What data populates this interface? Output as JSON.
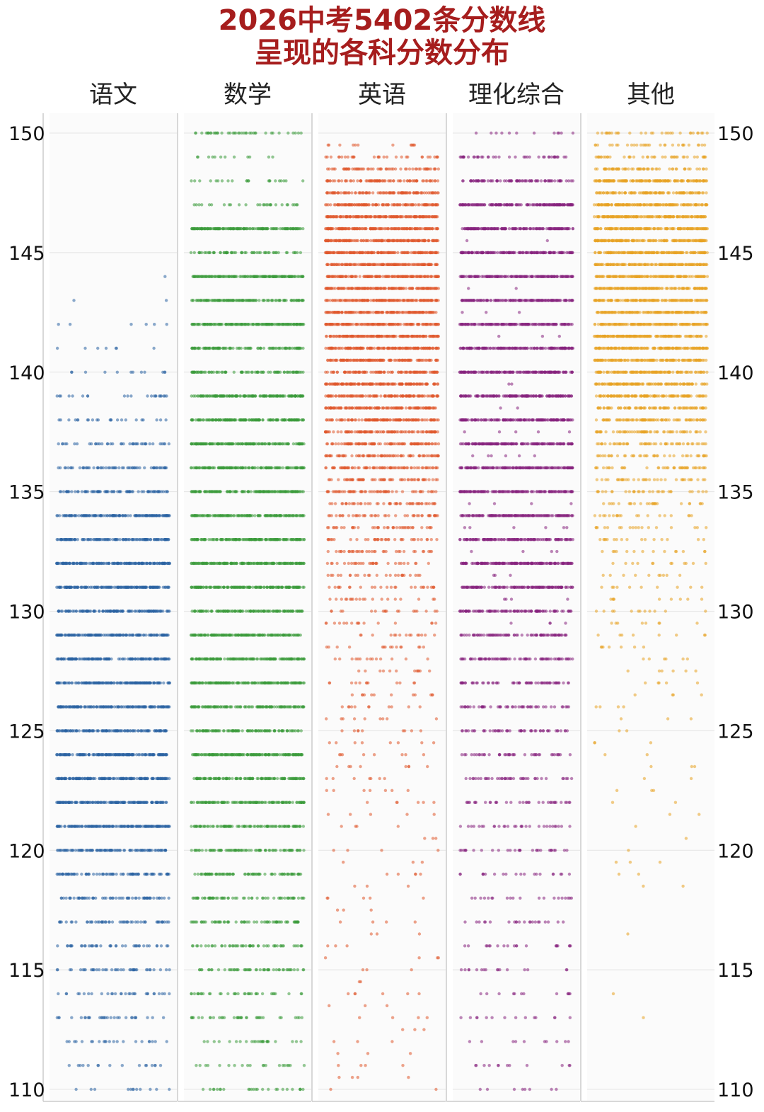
{
  "chart_data": {
    "type": "scatter",
    "title": [
      "2026中考5402条分数线",
      "呈现的各科分数分布"
    ],
    "ylim": [
      110,
      150
    ],
    "yticks": [
      110,
      115,
      120,
      125,
      130,
      135,
      140,
      145,
      150
    ],
    "y_axis_both_sides": true,
    "grid": "horizontal",
    "series": [
      {
        "name": "语文",
        "color": "#2a62a3",
        "points_per_score": {
          "144": 1,
          "143": 2,
          "142": 6,
          "141": 7,
          "140": 12,
          "139": 22,
          "138": 23,
          "137": 40,
          "136": 60,
          "135": 80,
          "134": 150,
          "133": 120,
          "132": 150,
          "131": 150,
          "130": 120,
          "129": 150,
          "128": 150,
          "127": 150,
          "126": 150,
          "125": 120,
          "124": 150,
          "123": 150,
          "122": 150,
          "121": 150,
          "120": 100,
          "119": 80,
          "118": 60,
          "117": 50,
          "116": 40,
          "115": 40,
          "114": 30,
          "113": 30,
          "112": 22,
          "111": 16,
          "110": 12
        }
      },
      {
        "name": "数学",
        "color": "#3a9a3a",
        "points_per_score": {
          "150": 40,
          "149": 12,
          "148": 22,
          "147": 28,
          "146": 150,
          "145": 60,
          "144": 150,
          "143": 120,
          "142": 150,
          "141": 100,
          "140": 80,
          "139": 150,
          "138": 150,
          "137": 150,
          "136": 150,
          "135": 150,
          "134": 150,
          "133": 150,
          "132": 150,
          "131": 150,
          "130": 120,
          "129": 150,
          "128": 150,
          "127": 150,
          "126": 120,
          "125": 100,
          "124": 150,
          "123": 120,
          "122": 120,
          "121": 100,
          "120": 80,
          "119": 80,
          "118": 60,
          "117": 60,
          "116": 50,
          "115": 50,
          "114": 35,
          "113": 35,
          "112": 25,
          "111": 20,
          "110": 25
        }
      },
      {
        "name": "英语",
        "color": "#e0582b",
        "points_per_score": {
          "150": 0,
          "149.5": 12,
          "149": 30,
          "148.5": 60,
          "148": 80,
          "147.5": 100,
          "147": 120,
          "146.5": 150,
          "146": 150,
          "145.5": 150,
          "145": 150,
          "144.5": 150,
          "144": 150,
          "143.5": 150,
          "143": 150,
          "142.5": 150,
          "142": 150,
          "141.5": 150,
          "141": 150,
          "140.5": 120,
          "140": 100,
          "139.5": 150,
          "139": 120,
          "138.5": 120,
          "138": 120,
          "137.5": 100,
          "137": 100,
          "136.5": 80,
          "136": 80,
          "135.5": 60,
          "135": 60,
          "134.5": 50,
          "134": 45,
          "133.5": 40,
          "133": 35,
          "132.5": 35,
          "132": 30,
          "131.5": 25,
          "131": 25,
          "130.5": 20,
          "130": 18,
          "129.5": 16,
          "129": 15,
          "128.5": 15,
          "128": 14,
          "127.5": 12,
          "127": 12,
          "126.5": 12,
          "126": 11,
          "125.5": 9,
          "125": 9,
          "124.5": 8,
          "124": 8,
          "123.5": 8,
          "123": 7,
          "122.5": 7,
          "122": 6,
          "121.5": 5,
          "121": 4,
          "120.5": 3,
          "120": 4,
          "119.5": 3,
          "119": 5,
          "118.5": 3,
          "118": 5,
          "117.5": 3,
          "117": 4,
          "116.5": 3,
          "116": 3,
          "115.5": 4,
          "115": 3,
          "114.5": 2,
          "114": 6,
          "113.5": 3,
          "113": 4,
          "112.5": 3,
          "112": 3,
          "111.5": 3,
          "111": 4,
          "110.5": 4,
          "110": 2
        }
      },
      {
        "name": "理化综合",
        "color": "#86227e",
        "points_per_score": {
          "150": 12,
          "149": 40,
          "148": 80,
          "147": 150,
          "146": 150,
          "145": 150,
          "144": 150,
          "143": 150,
          "142": 150,
          "141": 150,
          "140": 150,
          "139": 150,
          "138": 150,
          "137": 150,
          "136": 150,
          "135": 150,
          "134": 150,
          "133": 120,
          "132": 150,
          "131": 120,
          "130": 100,
          "129": 80,
          "128": 80,
          "127": 60,
          "126": 50,
          "125": 50,
          "124": 40,
          "123": 40,
          "122": 35,
          "121": 30,
          "120": 30,
          "119": 20,
          "118": 20,
          "117": 22,
          "116": 20,
          "115": 16,
          "114": 12,
          "113": 14,
          "112": 10,
          "111": 12,
          "110": 8,
          "145.5": 2,
          "143.5": 2,
          "142.5": 3,
          "141.5": 3,
          "139.5": 2,
          "138.5": 2,
          "137.5": 5,
          "136.5": 6,
          "134.5": 4,
          "133.5": 6,
          "132.5": 4,
          "131.5": 3,
          "130.5": 4,
          "129.5": 4
        }
      },
      {
        "name": "其他",
        "color": "#e8a323",
        "points_per_score": {
          "150": 30,
          "149.5": 30,
          "149": 40,
          "148.5": 60,
          "148": 150,
          "147.5": 100,
          "147": 150,
          "146.5": 150,
          "146": 150,
          "145.5": 150,
          "145": 150,
          "144.5": 150,
          "144": 150,
          "143.5": 150,
          "143": 150,
          "142.5": 150,
          "142": 150,
          "141.5": 150,
          "141": 150,
          "140.5": 120,
          "140": 120,
          "139.5": 120,
          "139": 120,
          "138.5": 80,
          "138": 80,
          "137.5": 60,
          "137": 50,
          "136.5": 40,
          "136": 40,
          "135.5": 35,
          "135": 30,
          "134.5": 25,
          "134": 20,
          "133.5": 18,
          "133": 16,
          "132.5": 14,
          "132": 12,
          "131.5": 10,
          "131": 10,
          "130.5": 9,
          "130": 12,
          "129.5": 8,
          "129": 8,
          "128.5": 7,
          "128": 6,
          "127.5": 6,
          "127": 5,
          "126.5": 4,
          "126": 4,
          "125.5": 3,
          "125": 2,
          "124.5": 3,
          "124": 2,
          "123.5": 3,
          "123": 2,
          "122.5": 3,
          "122": 2,
          "121.5": 2,
          "121": 1,
          "120.5": 1,
          "120": 1,
          "119.5": 3,
          "119": 2,
          "118.5": 2,
          "116.5": 1,
          "114": 1,
          "113": 1
        }
      }
    ]
  }
}
